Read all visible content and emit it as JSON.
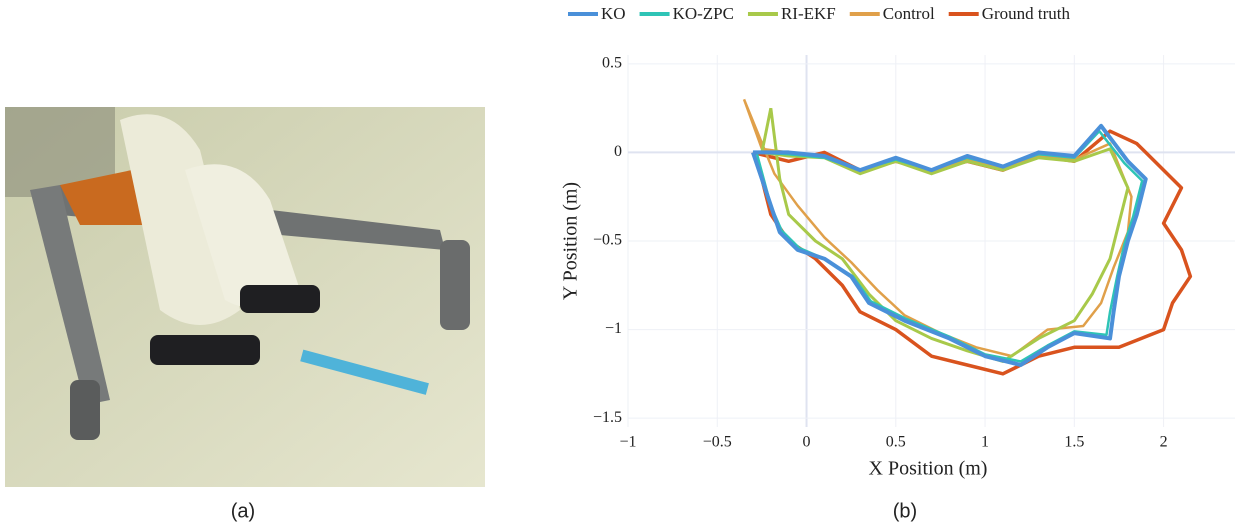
{
  "panel_labels": [
    "(a)",
    "(b)"
  ],
  "chart_data": {
    "type": "line",
    "xlabel": "X Position (m)",
    "ylabel": "Y Position (m)",
    "xlim": [
      -1,
      2.4
    ],
    "ylim": [
      -1.55,
      0.55
    ],
    "xticks": [
      {
        "value": -1,
        "label": "−1"
      },
      {
        "value": -0.5,
        "label": "−0.5"
      },
      0,
      0.5,
      1,
      1.5,
      2
    ],
    "yticks": [
      0.5,
      0,
      {
        "value": -0.5,
        "label": "−0.5"
      },
      {
        "value": -1,
        "label": "−1"
      },
      {
        "value": -1.5,
        "label": "−1.5"
      }
    ],
    "grid": true,
    "legend": "top",
    "series": [
      {
        "name": "KO",
        "color": "#4a90d9",
        "width": 4,
        "x": [
          -0.3,
          -0.1,
          0.1,
          0.3,
          0.5,
          0.7,
          0.9,
          1.1,
          1.3,
          1.5,
          1.65,
          1.8,
          1.9,
          1.85,
          1.8,
          1.75,
          1.72,
          1.7,
          1.5,
          1.35,
          1.2,
          1.0,
          0.8,
          0.55,
          0.35,
          0.25,
          0.1,
          -0.05,
          -0.15,
          -0.2,
          -0.25,
          -0.3
        ],
        "values": [
          0.0,
          0.0,
          -0.02,
          -0.1,
          -0.03,
          -0.1,
          -0.02,
          -0.08,
          0.0,
          -0.02,
          0.15,
          -0.05,
          -0.15,
          -0.35,
          -0.5,
          -0.7,
          -0.9,
          -1.05,
          -1.02,
          -1.1,
          -1.2,
          -1.15,
          -1.05,
          -0.95,
          -0.85,
          -0.7,
          -0.6,
          -0.55,
          -0.45,
          -0.3,
          -0.15,
          0.0
        ]
      },
      {
        "name": "KO-ZPC",
        "color": "#2ec4b6",
        "width": 2.5,
        "x": [
          -0.28,
          -0.1,
          0.1,
          0.3,
          0.5,
          0.7,
          0.9,
          1.1,
          1.3,
          1.5,
          1.64,
          1.78,
          1.88,
          1.83,
          1.78,
          1.74,
          1.7,
          1.68,
          1.5,
          1.35,
          1.2,
          1.0,
          0.8,
          0.56,
          0.36,
          0.26,
          0.1,
          -0.04,
          -0.14,
          -0.2,
          -0.24,
          -0.28
        ],
        "values": [
          0.0,
          -0.01,
          -0.03,
          -0.1,
          -0.04,
          -0.1,
          -0.03,
          -0.08,
          -0.01,
          -0.03,
          0.12,
          -0.06,
          -0.16,
          -0.36,
          -0.52,
          -0.7,
          -0.9,
          -1.03,
          -1.01,
          -1.09,
          -1.18,
          -1.14,
          -1.04,
          -0.94,
          -0.84,
          -0.7,
          -0.6,
          -0.54,
          -0.44,
          -0.3,
          -0.15,
          0.0
        ]
      },
      {
        "name": "RI-EKF",
        "color": "#a8c94a",
        "width": 3,
        "x": [
          -0.2,
          -0.25,
          -0.1,
          0.1,
          0.3,
          0.5,
          0.7,
          0.9,
          1.1,
          1.3,
          1.5,
          1.7,
          1.8,
          1.75,
          1.7,
          1.6,
          1.5,
          1.3,
          1.1,
          0.9,
          0.7,
          0.5,
          0.35,
          0.2,
          0.05,
          -0.1,
          -0.15,
          -0.2
        ],
        "values": [
          0.25,
          0.0,
          -0.02,
          -0.03,
          -0.12,
          -0.05,
          -0.12,
          -0.05,
          -0.1,
          -0.03,
          -0.05,
          0.02,
          -0.2,
          -0.4,
          -0.6,
          -0.8,
          -0.95,
          -1.05,
          -1.18,
          -1.12,
          -1.05,
          -0.95,
          -0.8,
          -0.6,
          -0.5,
          -0.35,
          -0.15,
          0.25
        ]
      },
      {
        "name": "Control",
        "color": "#e0a04a",
        "width": 2.5,
        "x": [
          -0.35,
          -0.25,
          -0.1,
          0.1,
          0.3,
          0.5,
          0.7,
          0.9,
          1.1,
          1.3,
          1.5,
          1.7,
          1.82,
          1.8,
          1.72,
          1.65,
          1.55,
          1.35,
          1.15,
          0.95,
          0.75,
          0.55,
          0.4,
          0.25,
          0.1,
          -0.05,
          -0.18,
          -0.35
        ],
        "values": [
          0.3,
          0.02,
          0.0,
          -0.02,
          -0.1,
          -0.04,
          -0.11,
          -0.04,
          -0.09,
          -0.02,
          -0.04,
          0.05,
          -0.25,
          -0.45,
          -0.65,
          -0.85,
          -0.98,
          -1.0,
          -1.15,
          -1.1,
          -1.02,
          -0.92,
          -0.78,
          -0.62,
          -0.48,
          -0.3,
          -0.12,
          0.3
        ]
      },
      {
        "name": "Ground truth",
        "color": "#d9531e",
        "width": 3.5,
        "x": [
          -0.3,
          -0.1,
          0.1,
          0.3,
          0.5,
          0.7,
          0.9,
          1.1,
          1.3,
          1.5,
          1.7,
          1.85,
          2.0,
          2.1,
          2.0,
          2.1,
          2.15,
          2.05,
          2.0,
          1.75,
          1.5,
          1.3,
          1.1,
          0.9,
          0.7,
          0.5,
          0.3,
          0.2,
          0.05,
          -0.1,
          -0.2,
          -0.25,
          -0.3
        ],
        "values": [
          0.0,
          -0.05,
          0.0,
          -0.1,
          -0.05,
          -0.1,
          -0.05,
          -0.1,
          -0.02,
          -0.05,
          0.12,
          0.05,
          -0.1,
          -0.2,
          -0.4,
          -0.55,
          -0.7,
          -0.85,
          -1.0,
          -1.1,
          -1.1,
          -1.15,
          -1.25,
          -1.2,
          -1.15,
          -1.0,
          -0.9,
          -0.75,
          -0.6,
          -0.5,
          -0.35,
          -0.15,
          0.0
        ]
      }
    ]
  }
}
